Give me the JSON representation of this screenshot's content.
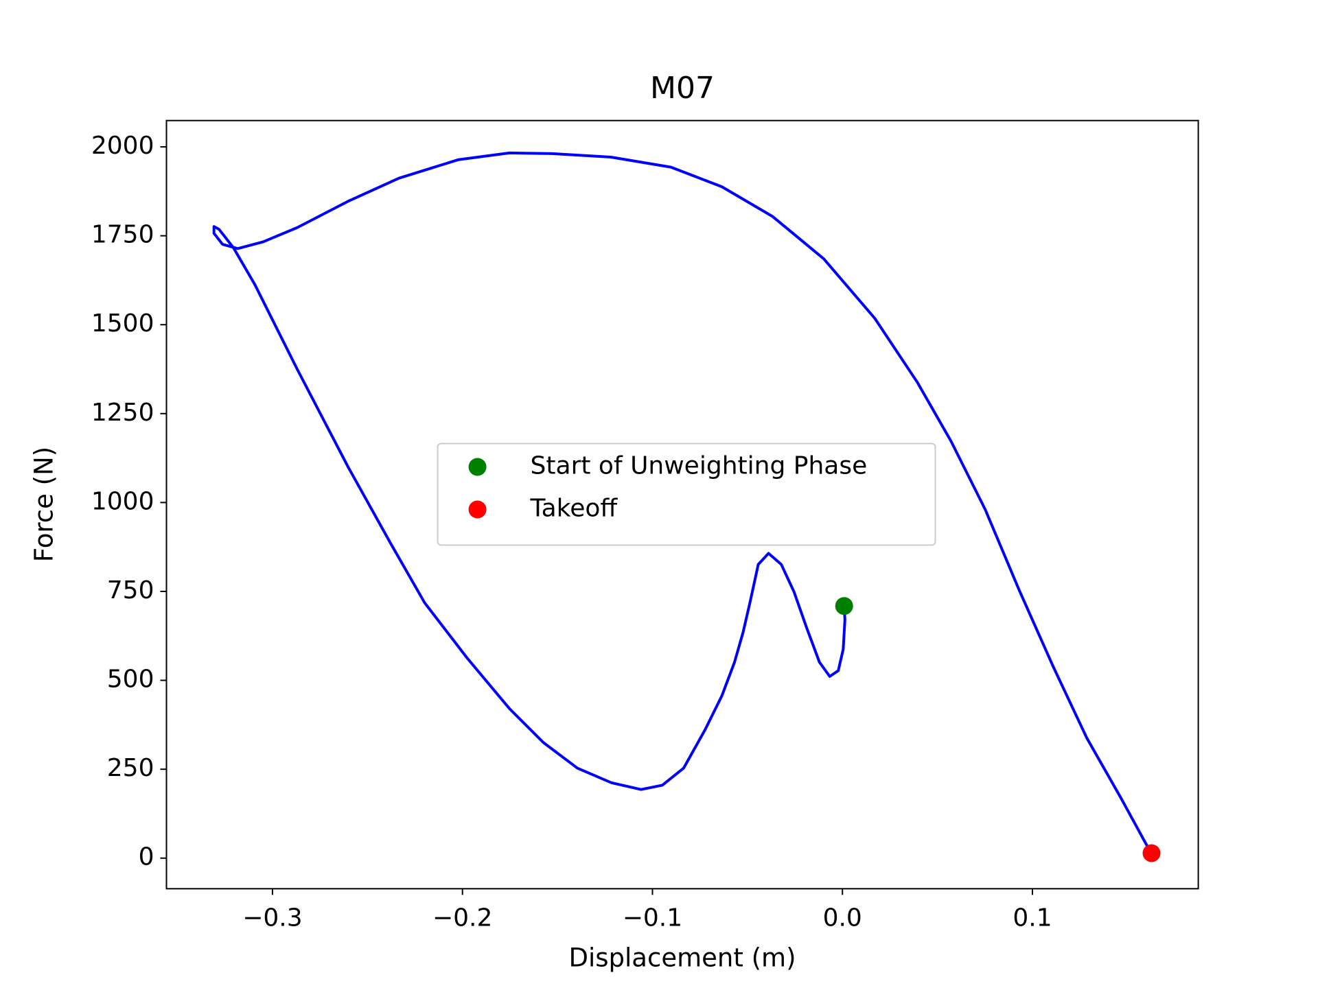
{
  "chart_data": {
    "type": "line",
    "title": "M07",
    "xlabel": "Displacement (m)",
    "ylabel": "Force (N)",
    "xlim": [
      -0.3558,
      0.1873
    ],
    "ylim": [
      -86,
      2074
    ],
    "xticks": [
      {
        "value": -0.3,
        "label": "−0.3"
      },
      {
        "value": -0.2,
        "label": "−0.2"
      },
      {
        "value": -0.1,
        "label": "−0.1"
      },
      {
        "value": 0,
        "label": "0.0"
      },
      0.1
    ],
    "yticks": [
      0,
      250,
      500,
      750,
      1000,
      1250,
      1500,
      1750,
      2000
    ],
    "grid": false,
    "legend": "center",
    "series": [
      {
        "color": "blue",
        "style": "line",
        "x": [
          0.0009,
          0.0013,
          0.0004,
          -0.0022,
          -0.0067,
          -0.0121,
          -0.0188,
          -0.0255,
          -0.0322,
          -0.0389,
          -0.0443,
          -0.0487,
          -0.0523,
          -0.0568,
          -0.0635,
          -0.0724,
          -0.0836,
          -0.0948,
          -0.106,
          -0.1216,
          -0.1395,
          -0.1574,
          -0.1752,
          -0.1976,
          -0.2199,
          -0.2378,
          -0.2602,
          -0.287,
          -0.3093,
          -0.3205,
          -0.3281,
          -0.3308,
          -0.3308,
          -0.3263,
          -0.3183,
          -0.3049,
          -0.287,
          -0.2602,
          -0.2334,
          -0.2021,
          -0.1752,
          -0.1529,
          -0.1216,
          -0.0903,
          -0.0635,
          -0.0367,
          -0.0098,
          0.017,
          0.0393,
          0.0572,
          0.0751,
          0.093,
          0.1109,
          0.1287,
          0.1466,
          0.16,
          0.1627
        ],
        "values": [
          709,
          670,
          587,
          527,
          511,
          551,
          647,
          749,
          826,
          857,
          826,
          718,
          635,
          551,
          456,
          360,
          253,
          205,
          193,
          212,
          253,
          325,
          420,
          563,
          718,
          885,
          1100,
          1375,
          1613,
          1716,
          1768,
          1776,
          1757,
          1726,
          1714,
          1733,
          1773,
          1847,
          1912,
          1964,
          1983,
          1981,
          1971,
          1943,
          1888,
          1804,
          1685,
          1518,
          1339,
          1172,
          981,
          754,
          539,
          337,
          169,
          38,
          14
        ]
      },
      {
        "name": "Start of Unweighting Phase",
        "color": "green",
        "style": "marker",
        "x": [
          0.0009
        ],
        "values": [
          709
        ]
      },
      {
        "name": "Takeoff",
        "color": "red",
        "style": "marker",
        "x": [
          0.1627
        ],
        "values": [
          14
        ]
      }
    ]
  }
}
